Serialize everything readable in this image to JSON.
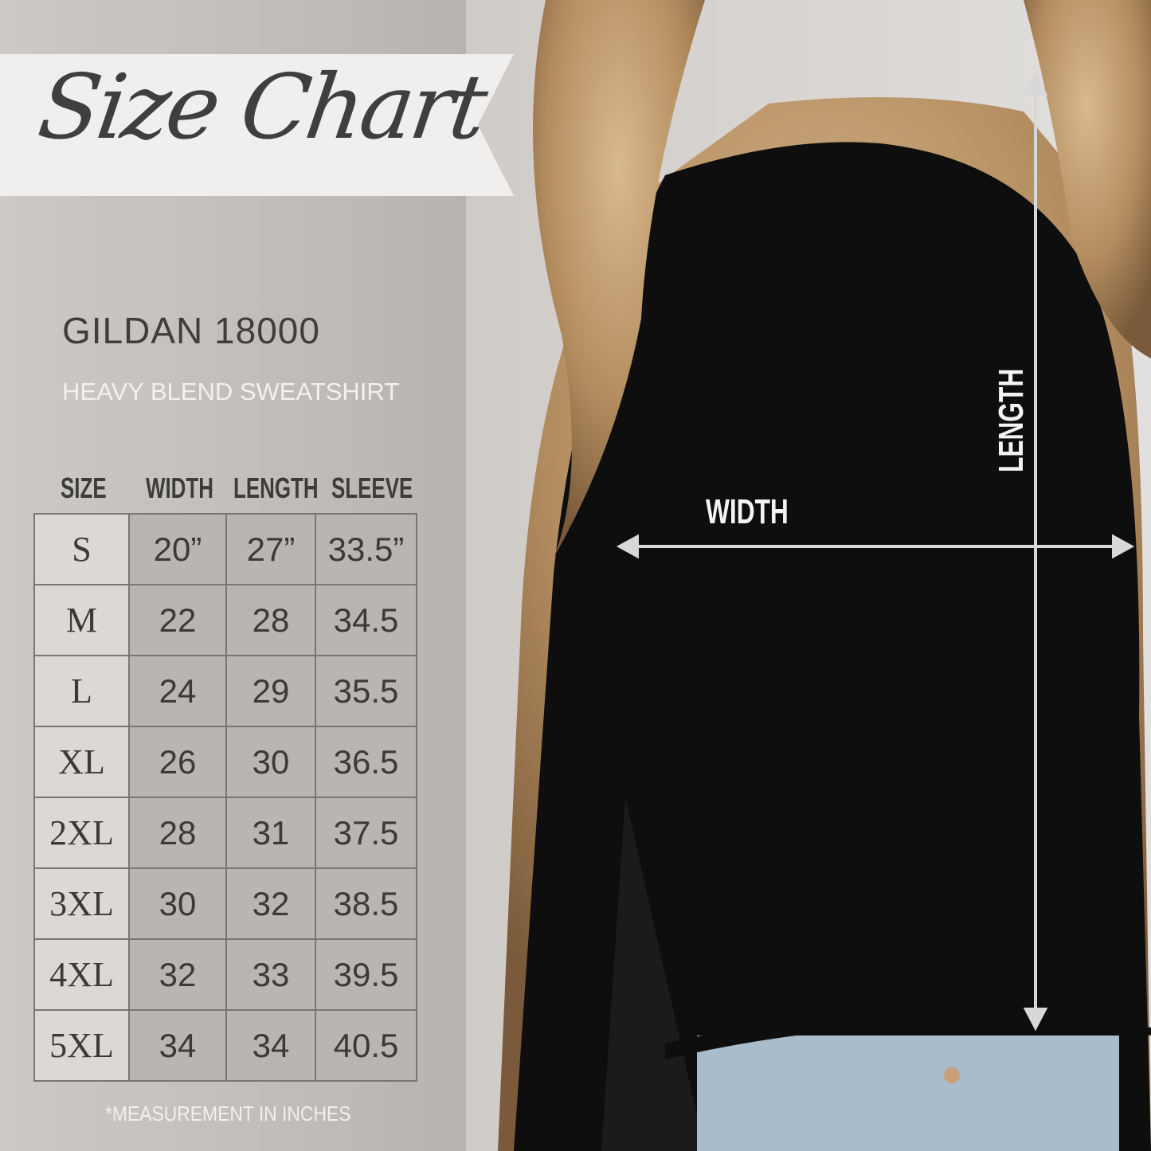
{
  "title": "Size Chart",
  "product": {
    "brand_model": "GILDAN 18000",
    "description": "HEAVY BLEND SWEATSHIRT"
  },
  "table": {
    "headers": [
      "SIZE",
      "WIDTH",
      "LENGTH",
      "SLEEVE"
    ],
    "rows": [
      [
        "S",
        "20”",
        "27”",
        "33.5”"
      ],
      [
        "M",
        "22",
        "28",
        "34.5"
      ],
      [
        "L",
        "24",
        "29",
        "35.5"
      ],
      [
        "XL",
        "26",
        "30",
        "36.5"
      ],
      [
        "2XL",
        "28",
        "31",
        "37.5"
      ],
      [
        "3XL",
        "30",
        "32",
        "38.5"
      ],
      [
        "4XL",
        "32",
        "33",
        "39.5"
      ],
      [
        "5XL",
        "34",
        "34",
        "40.5"
      ]
    ]
  },
  "footnote": "*MEASUREMENT IN INCHES",
  "diagram": {
    "width_label": "WIDTH",
    "length_label": "LENGTH"
  },
  "colors": {
    "sweatshirt": "#0d0d0d",
    "text_dark": "#3e3e3e",
    "background": "#bfbab6"
  }
}
